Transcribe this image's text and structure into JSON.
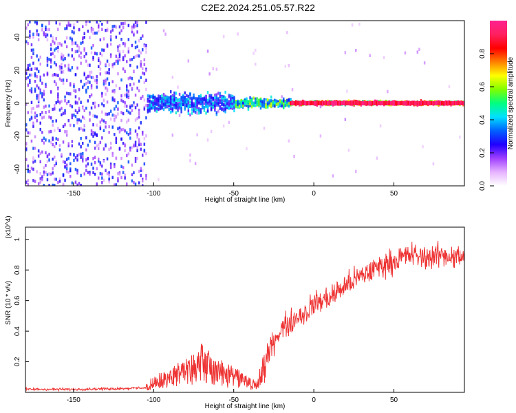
{
  "figure_title": "C2E2.2024.251.05.57.R22",
  "chart_data": [
    {
      "type": "heatmap",
      "xlabel": "Height of straight line (km)",
      "ylabel": "Frequency (Hz)",
      "xlim": [
        -180,
        94
      ],
      "ylim": [
        -50,
        50
      ],
      "x_ticks": [
        -150,
        -100,
        -50,
        0,
        50
      ],
      "y_ticks": [
        -40,
        -20,
        0,
        20,
        40
      ],
      "colorbar": {
        "label": "Normalized spectral amplitude",
        "range": [
          0,
          1
        ],
        "ticks": [
          "0.0",
          "0.2",
          "0.4",
          "0.6",
          "0.8"
        ],
        "colors": [
          "#ffffff",
          "#e6b3ff",
          "#a040ff",
          "#2000ff",
          "#0060ff",
          "#00e0ff",
          "#00ff80",
          "#80ff00",
          "#ffff00",
          "#ff8000",
          "#ff0000",
          "#ff2060",
          "#ff2090"
        ]
      },
      "bands": [
        {
          "x_range": [
            -180,
            -105
          ],
          "freq_halfwidth": 50,
          "amplitude": 0.15,
          "note": "broadband noise"
        },
        {
          "x_range": [
            -105,
            -50
          ],
          "freq_halfwidth": 8,
          "amplitude": 0.35
        },
        {
          "x_range": [
            -50,
            -15
          ],
          "freq_halfwidth": 4,
          "amplitude": 0.5
        },
        {
          "x_range": [
            -15,
            94
          ],
          "freq_halfwidth": 1.5,
          "amplitude": 0.95
        }
      ]
    },
    {
      "type": "line",
      "xlabel": "Height of straight line (km)",
      "ylabel": "SNR (10 * v/v)",
      "y_multiplier": "(x10^4)",
      "xlim": [
        -180,
        94
      ],
      "ylim": [
        0,
        1.08
      ],
      "x_ticks": [
        -150,
        -100,
        -50,
        0,
        50
      ],
      "y_ticks": [
        0.2,
        0.4,
        0.6,
        0.8,
        1.0
      ],
      "line_color": "#ee3333",
      "series": [
        {
          "x": [
            -180,
            -150,
            -120,
            -105,
            -100,
            -90,
            -80,
            -70,
            -60,
            -50,
            -40,
            -35,
            -30,
            -25,
            -20,
            -15,
            -10,
            -5,
            0,
            10,
            20,
            30,
            40,
            50,
            60,
            70,
            80,
            94
          ],
          "y": [
            0.02,
            0.02,
            0.025,
            0.03,
            0.06,
            0.08,
            0.13,
            0.17,
            0.12,
            0.09,
            0.05,
            0.05,
            0.2,
            0.34,
            0.42,
            0.45,
            0.5,
            0.52,
            0.58,
            0.62,
            0.7,
            0.76,
            0.82,
            0.86,
            0.9,
            0.88,
            0.9,
            0.88
          ]
        }
      ]
    }
  ]
}
